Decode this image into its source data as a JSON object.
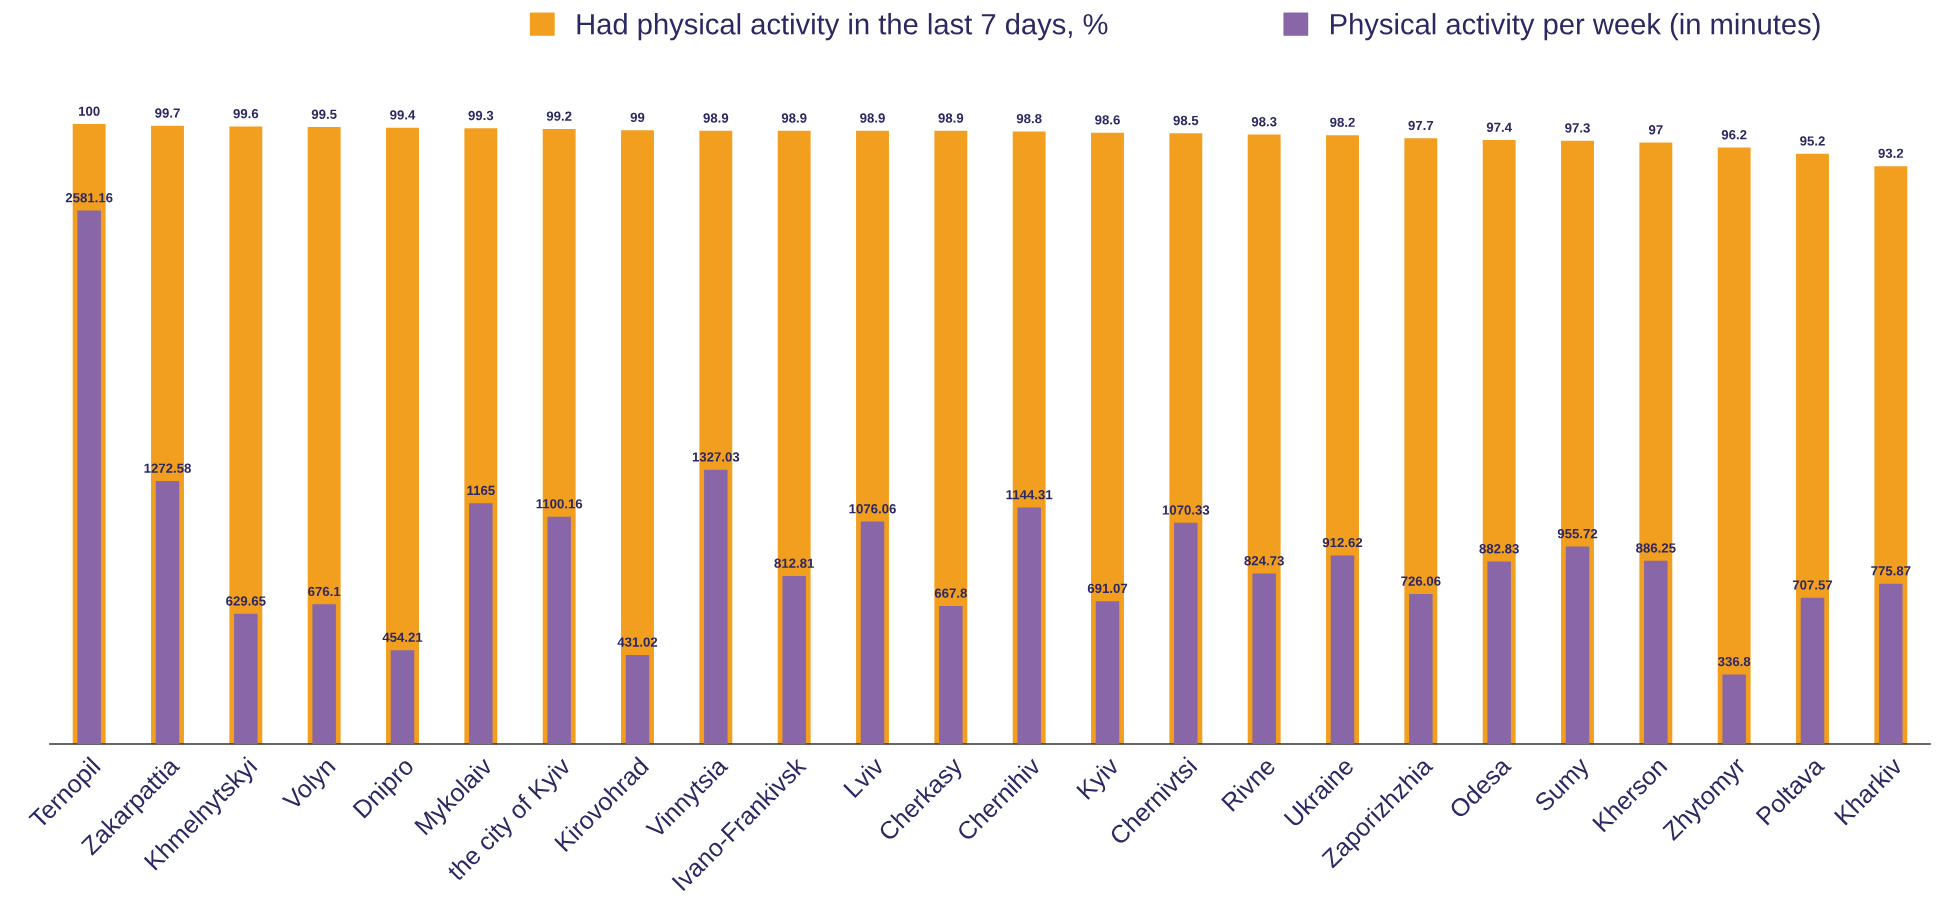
{
  "chart_data": {
    "type": "bar",
    "categories": [
      "Ternopil",
      "Zakarpattia",
      "Khmelnytskyi",
      "Volyn",
      "Dnipro",
      "Mykolaiv",
      "the city of Kyiv",
      "Kirovohrad",
      "Vinnytsia",
      "Ivano-Frankivsk",
      "Lviv",
      "Cherkasy",
      "Chernihiv",
      "Kyiv",
      "Chernivtsi",
      "Rivne",
      "Ukraine",
      "Zaporizhzhia",
      "Odesa",
      "Sumy",
      "Kherson",
      "Zhytomyr",
      "Poltava",
      "Kharkiv"
    ],
    "series": [
      {
        "name": "Had physical activity in the last 7 days, %",
        "color": "#f29f1f",
        "values": [
          100,
          99.7,
          99.6,
          99.5,
          99.4,
          99.3,
          99.2,
          99,
          98.9,
          98.9,
          98.9,
          98.9,
          98.8,
          98.6,
          98.5,
          98.3,
          98.2,
          97.7,
          97.4,
          97.3,
          97,
          96.2,
          95.2,
          93.2
        ]
      },
      {
        "name": "Physical activity per week (in minutes)",
        "color": "#8866a8",
        "axis": "y2",
        "values": [
          2581.16,
          1272.58,
          629.65,
          676.1,
          454.21,
          1165,
          1100.16,
          431.02,
          1327.03,
          812.81,
          1076.06,
          667.8,
          1144.31,
          691.07,
          1070.33,
          824.73,
          912.62,
          726.06,
          882.83,
          955.72,
          886.25,
          336.8,
          707.57,
          775.87
        ]
      }
    ],
    "ylim": [
      0,
      100
    ],
    "y2lim": [
      0,
      3000
    ],
    "data_labels": true,
    "legend": "top",
    "tick_labels": "x"
  }
}
